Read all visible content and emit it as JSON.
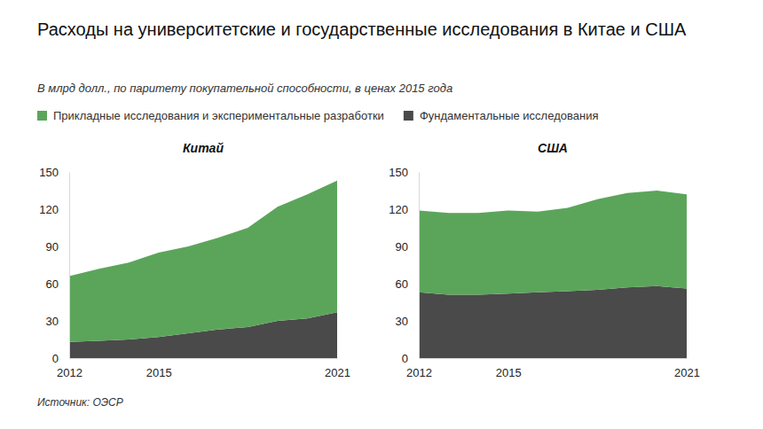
{
  "title": "Расходы на университетские и государственные исследования в Китае и США",
  "subtitle": "В млрд долл., по паритету покупательной способности, в ценах 2015 года",
  "source": "Источник: ОЭСР",
  "chart_data": [
    {
      "type": "area",
      "title": "Китай",
      "stacked": true,
      "legend": "top",
      "x": [
        2012,
        2013,
        2014,
        2015,
        2016,
        2017,
        2018,
        2019,
        2020,
        2021
      ],
      "xlim": [
        2012,
        2021
      ],
      "xticks": [
        2012,
        2015,
        2021
      ],
      "ylim": [
        0,
        150
      ],
      "yticks": [
        0,
        30,
        60,
        90,
        120,
        150
      ],
      "series": [
        {
          "name": "Прикладные исследования и экспериментальные разработки",
          "color": "#5ba55b",
          "values": [
            53,
            58,
            62,
            68,
            70,
            74,
            80,
            92,
            100,
            106
          ]
        },
        {
          "name": "Фундаментальные исследования",
          "color": "#4a4a4a",
          "values": [
            13,
            14,
            15,
            17,
            20,
            23,
            25,
            30,
            32,
            37
          ]
        }
      ]
    },
    {
      "type": "area",
      "title": "США",
      "stacked": true,
      "x": [
        2012,
        2013,
        2014,
        2015,
        2016,
        2017,
        2018,
        2019,
        2020,
        2021
      ],
      "xlim": [
        2012,
        2021
      ],
      "xticks": [
        2012,
        2015,
        2021
      ],
      "ylim": [
        0,
        150
      ],
      "yticks": [
        0,
        30,
        60,
        90,
        120,
        150
      ],
      "series": [
        {
          "name": "Прикладные исследования и экспериментальные разработки",
          "color": "#5ba55b",
          "values": [
            66,
            66,
            66,
            67,
            65,
            67,
            73,
            76,
            77,
            76
          ]
        },
        {
          "name": "Фундаментальные исследования",
          "color": "#4a4a4a",
          "values": [
            53,
            51,
            51,
            52,
            53,
            54,
            55,
            57,
            58,
            56
          ]
        }
      ]
    }
  ]
}
